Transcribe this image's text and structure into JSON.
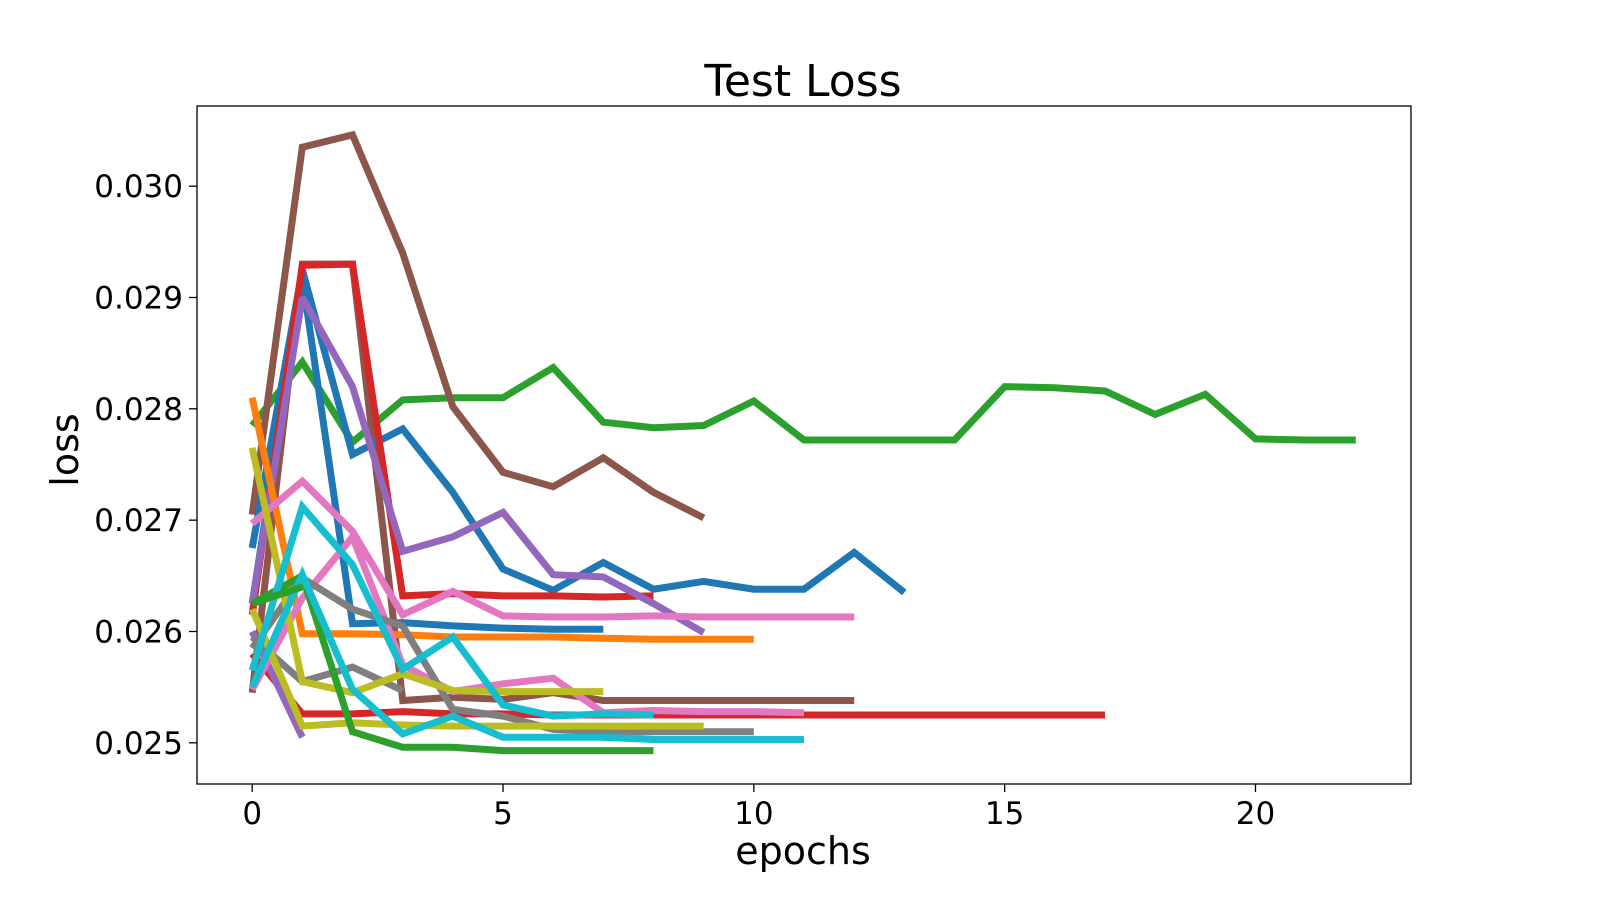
{
  "chart_data": {
    "type": "line",
    "title": "Test Loss",
    "xlabel": "epochs",
    "ylabel": "loss",
    "xlim": [
      -1.1,
      23.1
    ],
    "ylim": [
      0.02463,
      0.03072
    ],
    "xticks": [
      0,
      5,
      10,
      15,
      20
    ],
    "xtick_labels": [
      "0",
      "5",
      "10",
      "15",
      "20"
    ],
    "yticks": [
      0.025,
      0.026,
      0.027,
      0.028,
      0.029,
      0.03
    ],
    "ytick_labels": [
      "0.025",
      "0.026",
      "0.027",
      "0.028",
      "0.029",
      "0.030"
    ],
    "grid": false,
    "legend": "none",
    "series": [
      {
        "color": "#2ca02c",
        "y": [
          0.02785,
          0.02842,
          0.0277,
          0.02808,
          0.0281,
          0.0281,
          0.02837,
          0.02788,
          0.02783,
          0.02785,
          0.02807,
          0.02772,
          0.02772,
          0.02772,
          0.02772,
          0.0282,
          0.02819,
          0.02816,
          0.02795,
          0.02813,
          0.02773,
          0.02772,
          0.02772
        ]
      },
      {
        "color": "#8c564b",
        "y": [
          0.02705,
          0.03035,
          0.03046,
          0.0294,
          0.02802,
          0.02743,
          0.0273,
          0.02756,
          0.02725,
          0.02702
        ]
      },
      {
        "color": "#8c564b",
        "y": [
          0.02545,
          0.0293,
          0.0293,
          0.02538,
          0.02541,
          0.02539,
          0.02545,
          0.02538,
          0.02538,
          0.02538,
          0.02538,
          0.02538,
          0.02538
        ]
      },
      {
        "color": "#1f77b4",
        "y": [
          0.02675,
          0.02925,
          0.02759,
          0.02782,
          0.02725,
          0.02656,
          0.02637,
          0.02662,
          0.02638,
          0.02645,
          0.02638,
          0.02638,
          0.02671,
          0.02635
        ]
      },
      {
        "color": "#1f77b4",
        "y": [
          0.02625,
          0.02918,
          0.02607,
          0.02608,
          0.02605,
          0.02603,
          0.02602,
          0.02602
        ]
      },
      {
        "color": "#d62728",
        "y": [
          0.02615,
          0.02929,
          0.0293,
          0.02632,
          0.02634,
          0.02632,
          0.02632,
          0.02631,
          0.02632
        ]
      },
      {
        "color": "#d62728",
        "y": [
          0.0258,
          0.02526,
          0.02526,
          0.02528,
          0.02526,
          0.02526,
          0.02525,
          0.02525,
          0.02525,
          0.02525,
          0.02525,
          0.02525,
          0.02525,
          0.02525,
          0.02525,
          0.02525,
          0.02525,
          0.02525
        ]
      },
      {
        "color": "#9467bd",
        "y": [
          0.02625,
          0.029,
          0.0282,
          0.02672,
          0.02685,
          0.02707,
          0.02651,
          0.02649,
          0.02625,
          0.02599
        ]
      },
      {
        "color": "#9467bd",
        "y": [
          0.026,
          0.02505
        ]
      },
      {
        "color": "#ff7f0e",
        "y": [
          0.0281,
          0.02598,
          0.02598,
          0.02597,
          0.02595,
          0.02595,
          0.02595,
          0.02594,
          0.02593,
          0.02593,
          0.02593
        ]
      },
      {
        "color": "#e377c2",
        "y": [
          0.02697,
          0.02735,
          0.0269,
          0.02615,
          0.02636,
          0.02614,
          0.02613,
          0.02613,
          0.02614,
          0.02613,
          0.02613,
          0.02613,
          0.02613
        ]
      },
      {
        "color": "#e377c2",
        "y": [
          0.02548,
          0.0263,
          0.02685,
          0.0257,
          0.02546,
          0.02553,
          0.02558,
          0.02527,
          0.02529,
          0.02528,
          0.02528,
          0.02527
        ]
      },
      {
        "color": "#7f7f7f",
        "y": [
          0.02595,
          0.02555,
          0.02568,
          0.02547
        ]
      },
      {
        "color": "#7f7f7f",
        "y": [
          0.02585,
          0.02648,
          0.0262,
          0.02605,
          0.0253,
          0.02524,
          0.02512,
          0.0251,
          0.0251,
          0.0251,
          0.0251
        ]
      },
      {
        "color": "#bcbd22",
        "y": [
          0.02765,
          0.02555,
          0.02545,
          0.02562,
          0.02547,
          0.02546,
          0.02546,
          0.02546
        ]
      },
      {
        "color": "#bcbd22",
        "y": [
          0.0262,
          0.02515,
          0.02518,
          0.02516,
          0.02515,
          0.02515,
          0.02515,
          0.02515,
          0.02515,
          0.02515
        ]
      },
      {
        "color": "#2ca02c",
        "y": [
          0.02625,
          0.0265,
          0.0251,
          0.02496,
          0.02496,
          0.02493,
          0.02493,
          0.02493,
          0.02493
        ]
      },
      {
        "color": "#17becf",
        "y": [
          0.02565,
          0.02712,
          0.0266,
          0.02566,
          0.02595,
          0.02534,
          0.02524,
          0.02526,
          0.02525
        ]
      },
      {
        "color": "#17becf",
        "y": [
          0.0255,
          0.02651,
          0.02548,
          0.02508,
          0.02524,
          0.02505,
          0.02505,
          0.02505,
          0.02503,
          0.02503,
          0.02503,
          0.02503
        ]
      },
      {
        "color": "#2ca02c",
        "y": [
          0.02625,
          0.0264
        ]
      }
    ]
  }
}
